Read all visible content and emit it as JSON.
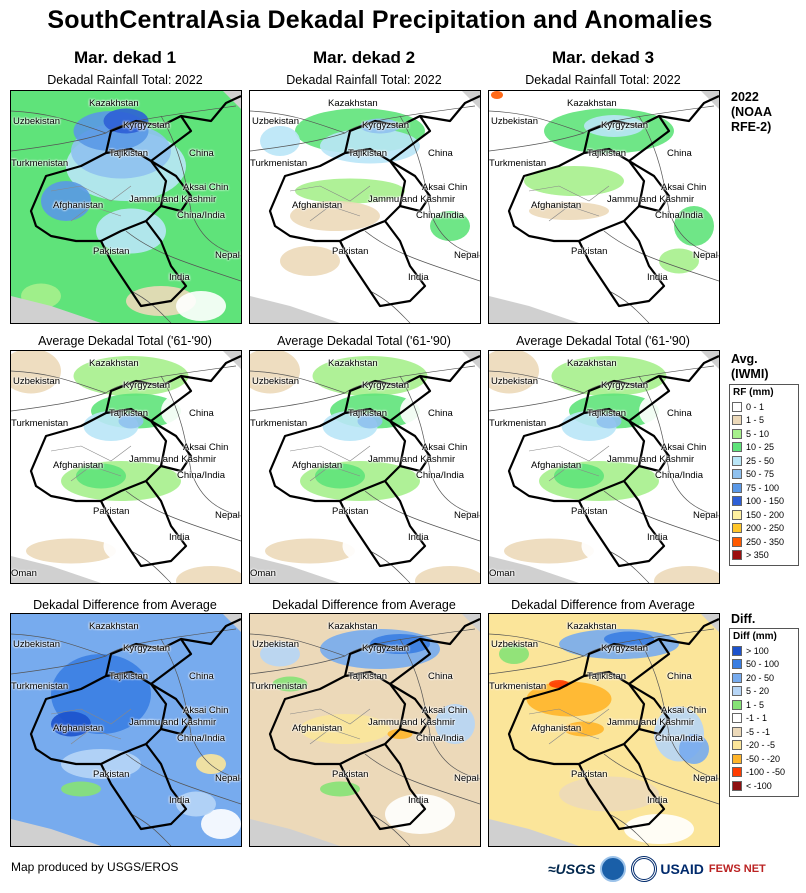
{
  "title": "SouthCentralAsia Dekadal Precipitation and Anomalies",
  "columns": [
    "Mar. dekad 1",
    "Mar. dekad 2",
    "Mar. dekad 3"
  ],
  "row_titles": {
    "rainfall": "Dekadal Rainfall Total: 2022",
    "average": "Average Dekadal Total ('61-'90)",
    "difference": "Dekadal Difference from Average"
  },
  "row_labels": {
    "rainfall": [
      "2022",
      "(NOAA",
      "RFE-2)"
    ],
    "average": [
      "Avg.",
      "(IWMI)"
    ],
    "difference": [
      "Diff."
    ]
  },
  "place_labels": {
    "kazakhstan": "Kazakhstan",
    "uzbekistan": "Uzbekistan",
    "kyrgyzstan": "Kyrgyzstan",
    "tajikistan": "Tajikistan",
    "turkmenistan": "Turkmenistan",
    "china": "China",
    "aksai_chin": "Aksai Chin",
    "jammu_kashmir": "Jammu and Kashmir",
    "china_india": "China/India",
    "afghanistan": "Afghanistan",
    "pakistan": "Pakistan",
    "nepal": "Nepal",
    "india": "India",
    "oman": "Oman"
  },
  "rf_legend": {
    "title": "RF (mm)",
    "items": [
      {
        "label": "0 - 1",
        "color": "#ffffff"
      },
      {
        "label": "1 - 5",
        "color": "#ecd9b9"
      },
      {
        "label": "5 - 10",
        "color": "#a6f08c"
      },
      {
        "label": "10 - 25",
        "color": "#5fe37a"
      },
      {
        "label": "25 - 50",
        "color": "#b9e6f7"
      },
      {
        "label": "50 - 75",
        "color": "#8fc1ef"
      },
      {
        "label": "75 - 100",
        "color": "#5a98e6"
      },
      {
        "label": "100 - 150",
        "color": "#2d5fd6"
      },
      {
        "label": "150 - 200",
        "color": "#fff0a0"
      },
      {
        "label": "200 - 250",
        "color": "#ffc62a"
      },
      {
        "label": "250 - 350",
        "color": "#ff5a00"
      },
      {
        "label": "> 350",
        "color": "#9c1010"
      }
    ]
  },
  "diff_legend": {
    "title": "Diff (mm)",
    "items": [
      {
        "label": "> 100",
        "color": "#1c52cc"
      },
      {
        "label": "50 - 100",
        "color": "#3a7ee2"
      },
      {
        "label": "20 - 50",
        "color": "#77abee"
      },
      {
        "label": "5 - 20",
        "color": "#b6d5f6"
      },
      {
        "label": "1 - 5",
        "color": "#86e276"
      },
      {
        "label": "-1 - 1",
        "color": "#ffffff"
      },
      {
        "label": "-5 - -1",
        "color": "#ecd9b9"
      },
      {
        "label": "-20 - -5",
        "color": "#fbe59a"
      },
      {
        "label": "-50 - -20",
        "color": "#ffb52a"
      },
      {
        "label": "-100 - -50",
        "color": "#ff3c00"
      },
      {
        "label": "< -100",
        "color": "#8e1010"
      }
    ]
  },
  "footer": "Map produced by USGS/EROS",
  "logos": {
    "usgs": "≈USGS",
    "usaid": "USAID",
    "fews": "FEWS NET"
  }
}
